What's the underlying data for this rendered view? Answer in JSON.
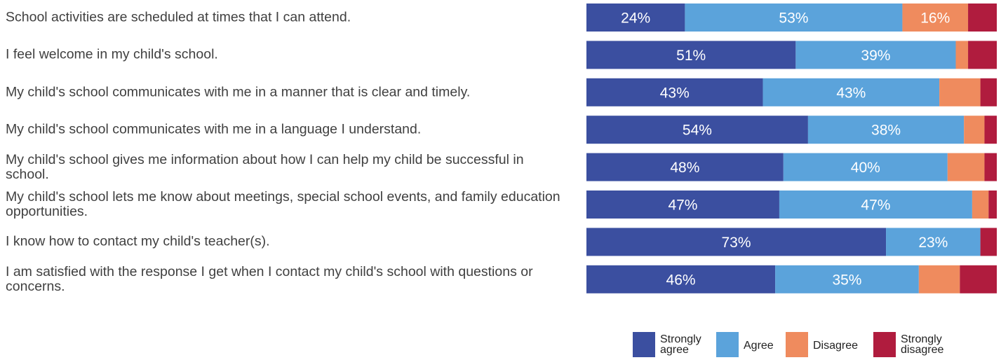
{
  "chart_data": {
    "type": "bar",
    "orientation": "horizontal",
    "stacked": "100%",
    "categories": [
      "School activities are scheduled at times that I can attend.",
      "I feel welcome in my child's school.",
      "My child's school communicates with me in a manner that is clear and timely.",
      "My child's school communicates with me in a language I understand.",
      "My child's school gives me information about how I can help my child be successful in school.",
      "My child's school lets me know about meetings, special school events, and family education opportunities.",
      "I know how to contact my child's teacher(s).",
      "I am satisfied with the response I get when I contact my child's school with questions or concerns."
    ],
    "series": [
      {
        "name": "Strongly agree",
        "color": "#3b4fa0",
        "values": [
          24,
          51,
          43,
          54,
          48,
          47,
          73,
          46
        ],
        "labels": [
          "24%",
          "51%",
          "43%",
          "54%",
          "48%",
          "47%",
          "73%",
          "46%"
        ]
      },
      {
        "name": "Agree",
        "color": "#5ba3db",
        "values": [
          53,
          39,
          43,
          38,
          40,
          47,
          23,
          35
        ],
        "labels": [
          "53%",
          "39%",
          "43%",
          "38%",
          "40%",
          "47%",
          "23%",
          "35%"
        ]
      },
      {
        "name": "Disagree",
        "color": "#ef8b5e",
        "values": [
          16,
          3,
          10,
          5,
          9,
          4,
          0,
          10
        ],
        "labels": [
          "16%",
          "",
          "",
          "",
          "",
          "",
          "",
          ""
        ]
      },
      {
        "name": "Strongly disagree",
        "color": "#b01c3e",
        "values": [
          7,
          7,
          4,
          3,
          3,
          2,
          4,
          9
        ],
        "labels": [
          "",
          "",
          "",
          "",
          "",
          "",
          "",
          ""
        ]
      }
    ],
    "xlim": [
      0,
      100
    ],
    "legend": {
      "position": "bottom-right",
      "entries": [
        {
          "lines": [
            "Strongly",
            "agree"
          ],
          "color": "#3b4fa0"
        },
        {
          "lines": [
            "Agree"
          ],
          "color": "#5ba3db"
        },
        {
          "lines": [
            "Disagree"
          ],
          "color": "#ef8b5e"
        },
        {
          "lines": [
            "Strongly",
            "disagree"
          ],
          "color": "#b01c3e"
        }
      ]
    }
  }
}
